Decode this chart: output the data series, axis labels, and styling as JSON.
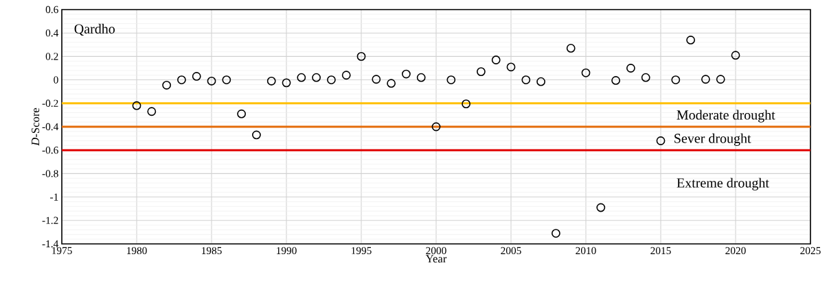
{
  "chart_data": {
    "type": "scatter",
    "title": "Qardho",
    "xlabel": "Year",
    "ylabel": "*D*-Score",
    "x": [
      1980,
      1981,
      1982,
      1983,
      1984,
      1985,
      1986,
      1987,
      1988,
      1989,
      1990,
      1991,
      1992,
      1993,
      1994,
      1995,
      1996,
      1997,
      1998,
      1999,
      2000,
      2001,
      2002,
      2003,
      2004,
      2005,
      2006,
      2007,
      2008,
      2009,
      2010,
      2011,
      2012,
      2013,
      2014,
      2015,
      2016,
      2017,
      2018,
      2019,
      2020
    ],
    "series": [
      {
        "color": "#000000",
        "values": [
          -0.22,
          -0.27,
          -0.045,
          0.0,
          0.03,
          -0.01,
          0.0,
          -0.29,
          -0.47,
          -0.01,
          -0.025,
          0.02,
          0.02,
          0.0,
          0.04,
          0.2,
          0.005,
          -0.03,
          0.05,
          0.02,
          -0.4,
          0.0,
          -0.205,
          0.07,
          0.17,
          0.11,
          0.0,
          -0.015,
          -1.31,
          0.27,
          0.06,
          -1.09,
          -0.005,
          0.1,
          0.02,
          -0.52,
          0.0,
          0.34,
          0.005,
          0.005,
          0.21
        ]
      }
    ],
    "marker": "circle",
    "grid": true,
    "xlim": [
      1975,
      2025
    ],
    "xticks": [
      1975,
      1980,
      1985,
      1990,
      1995,
      2000,
      2005,
      2010,
      2015,
      2020,
      2025
    ],
    "ylim": [
      -1.4,
      0.6
    ],
    "yticks": [
      -1.4,
      -1.2,
      -1,
      -0.8,
      -0.6,
      -0.4,
      -0.2,
      0,
      0.2,
      0.4,
      0.6
    ],
    "ref_lines": [
      {
        "axis": "y",
        "value": -0.2,
        "color": "#ffc000"
      },
      {
        "axis": "y",
        "value": -0.4,
        "color": "#e46c0a"
      },
      {
        "axis": "y",
        "value": -0.6,
        "color": "#e00000"
      }
    ],
    "annotations": [
      "Moderate drought",
      "Sever drought",
      "Extreme drought"
    ]
  }
}
